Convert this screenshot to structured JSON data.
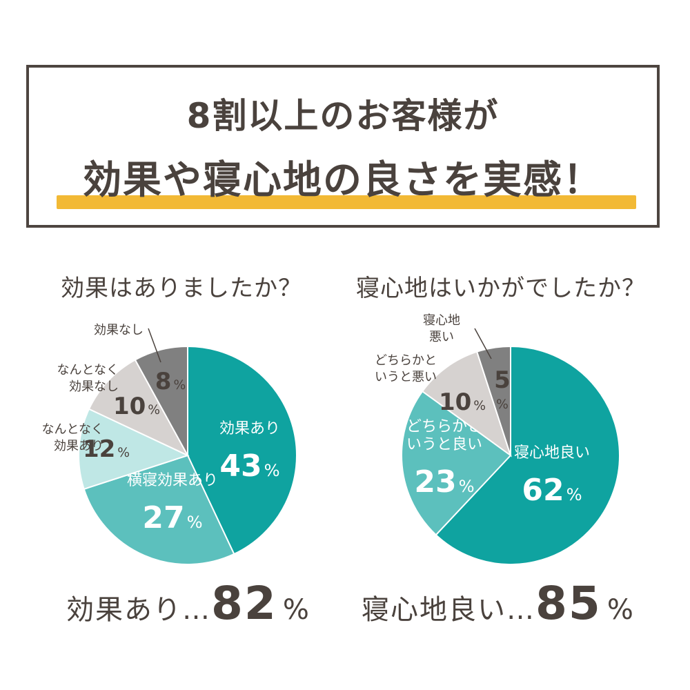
{
  "header": {
    "line1": "8割以上のお客様が",
    "line2": "効果や寝心地の良さを実感！",
    "highlight_color": "#f2b935",
    "border_color": "#4d4540"
  },
  "colors": {
    "teal_dark": "#0fa3a0",
    "teal_mid": "#5cc0bd",
    "teal_light": "#bfe7e5",
    "gray_light": "#d6d2d0",
    "gray_dark": "#808080",
    "text": "#4a423d"
  },
  "chart_data": [
    {
      "type": "pie",
      "title": "効果はありましたか？",
      "slices": [
        {
          "label": "効果あり",
          "value": 43,
          "pct_text": "43",
          "color": "#0fa3a0"
        },
        {
          "label": "横寝効果あり",
          "value": 27,
          "pct_text": "27",
          "color": "#5cc0bd"
        },
        {
          "label": "なんとなく効果あり",
          "value": 12,
          "pct_text": "12",
          "color": "#bfe7e5"
        },
        {
          "label": "なんとなく効果なし",
          "value": 10,
          "pct_text": "10",
          "color": "#d6d2d0"
        },
        {
          "label": "効果なし",
          "value": 8,
          "pct_text": "8",
          "color": "#808080"
        }
      ],
      "summary": {
        "label": "効果あり…",
        "value": "82",
        "unit": "%"
      }
    },
    {
      "type": "pie",
      "title": "寝心地はいかがでしたか？",
      "slices": [
        {
          "label": "寝心地良い",
          "value": 62,
          "pct_text": "62",
          "color": "#0fa3a0"
        },
        {
          "label": "どちらかというと良い",
          "value": 23,
          "pct_text": "23",
          "color": "#5cc0bd"
        },
        {
          "label": "どちらかというと悪い",
          "value": 10,
          "pct_text": "10",
          "color": "#d6d2d0"
        },
        {
          "label": "寝心地悪い",
          "value": 5,
          "pct_text": "5",
          "color": "#808080"
        }
      ],
      "summary": {
        "label": "寝心地良い…",
        "value": "85",
        "unit": "%"
      }
    }
  ]
}
